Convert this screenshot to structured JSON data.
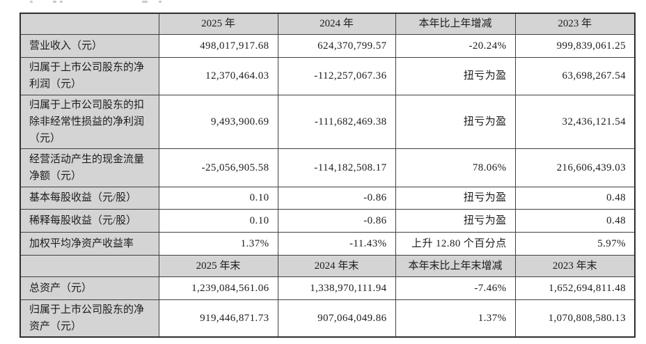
{
  "table": {
    "section_current_period": {
      "header": {
        "blank_label": "",
        "columns": [
          "2025 年",
          "2024 年",
          "本年比上年增减",
          "2023 年"
        ]
      },
      "rows": [
        {
          "label": "营业收入（元）",
          "values": [
            "498,017,917.68",
            "624,370,799.57",
            "-20.24%",
            "999,839,061.25"
          ]
        },
        {
          "label": "归属于上市公司股东的净利润（元）",
          "values": [
            "12,370,464.03",
            "-112,257,067.36",
            "扭亏为盈",
            "63,698,267.54"
          ]
        },
        {
          "label": "归属于上市公司股东的扣除非经常性损益的净利润（元）",
          "values": [
            "9,493,900.69",
            "-111,682,469.38",
            "扭亏为盈",
            "32,436,121.54"
          ]
        },
        {
          "label": "经营活动产生的现金流量净额（元）",
          "values": [
            "-25,056,905.58",
            "-114,182,508.17",
            "78.06%",
            "216,606,439.03"
          ]
        },
        {
          "label": "基本每股收益（元/股）",
          "values": [
            "0.10",
            "-0.86",
            "扭亏为盈",
            "0.48"
          ]
        },
        {
          "label": "稀释每股收益（元/股）",
          "values": [
            "0.10",
            "-0.86",
            "扭亏为盈",
            "0.48"
          ]
        },
        {
          "label": "加权平均净资产收益率",
          "values": [
            "1.37%",
            "-11.43%",
            "上升 12.80 个百分点",
            "5.97%"
          ]
        }
      ]
    },
    "section_period_end": {
      "header": {
        "blank_label": "",
        "columns": [
          "2025 年末",
          "2024 年末",
          "本年末比上年末增减",
          "2023 年末"
        ]
      },
      "rows": [
        {
          "label": "总资产（元）",
          "values": [
            "1,239,084,561.06",
            "1,338,970,111.94",
            "-7.46%",
            "1,652,694,811.48"
          ]
        },
        {
          "label": "归属于上市公司股东的净资产（元）",
          "values": [
            "919,446,871.73",
            "907,064,049.86",
            "1.37%",
            "1,070,808,580.13"
          ]
        }
      ]
    },
    "colors": {
      "header_bg": "#d4d4d4",
      "label_bg": "#d4d4d4",
      "cell_bg": "#ffffff",
      "border_inner": "#3f3f3f",
      "border_outer": "#2e2e2e"
    }
  }
}
